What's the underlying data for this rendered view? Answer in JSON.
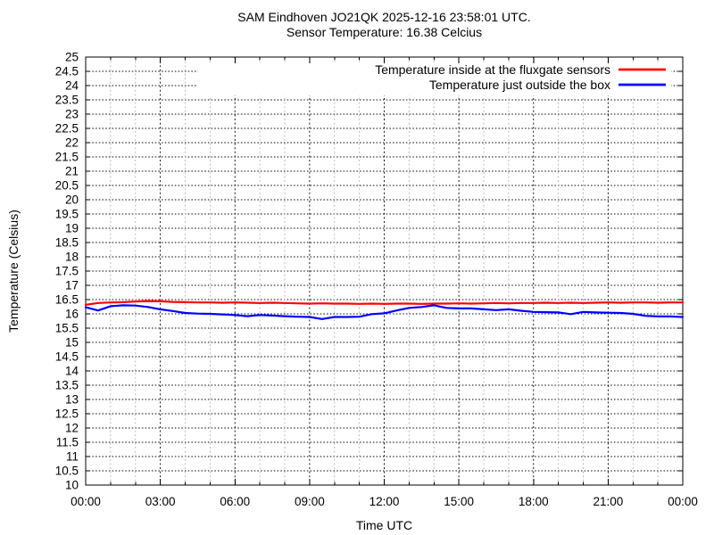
{
  "header": {
    "title": "SAM Eindhoven JO21QK 2025-12-16 23:58:01 UTC.",
    "subtitle": "Sensor Temperature: 16.38 Celcius"
  },
  "chart_data": {
    "type": "line",
    "title": "SAM Eindhoven JO21QK 2025-12-16 23:58:01 UTC.",
    "subtitle": "Sensor Temperature: 16.38 Celcius",
    "xlabel": "Time UTC",
    "ylabel": "Temperature (Celsius)",
    "xlim": [
      0,
      24
    ],
    "ylim": [
      10,
      25
    ],
    "yticks": {
      "min": 10,
      "max": 25,
      "step": 0.5
    },
    "xticks": {
      "hours": [
        0,
        3,
        6,
        9,
        12,
        15,
        18,
        21,
        24
      ],
      "labels": [
        "00:00",
        "03:00",
        "06:00",
        "09:00",
        "12:00",
        "15:00",
        "18:00",
        "21:00",
        "00:00"
      ],
      "minor_step_hours": 1
    },
    "grid": {
      "horizontal": "dotted-black",
      "vertical_major": "dashed-black",
      "vertical_minor": "dashed-gray"
    },
    "legend_position": "top-right-inside",
    "x_hours": [
      0,
      0.5,
      1,
      1.5,
      2,
      2.5,
      3,
      3.5,
      4,
      4.5,
      5,
      5.5,
      6,
      6.5,
      7,
      7.5,
      8,
      8.5,
      9,
      9.5,
      10,
      10.5,
      11,
      11.5,
      12,
      12.5,
      13,
      13.5,
      14,
      14.5,
      15,
      15.5,
      16,
      16.5,
      17,
      17.5,
      18,
      18.5,
      19,
      19.5,
      20,
      20.5,
      21,
      21.5,
      22,
      22.5,
      23,
      23.5,
      24
    ],
    "series": [
      {
        "name": "Temperature inside at the fluxgate sensors",
        "color": "#ff0000",
        "values": [
          16.32,
          16.38,
          16.4,
          16.41,
          16.43,
          16.45,
          16.44,
          16.42,
          16.41,
          16.4,
          16.4,
          16.39,
          16.4,
          16.39,
          16.38,
          16.39,
          16.38,
          16.37,
          16.36,
          16.37,
          16.36,
          16.36,
          16.35,
          16.36,
          16.35,
          16.36,
          16.36,
          16.35,
          16.36,
          16.36,
          16.37,
          16.36,
          16.37,
          16.38,
          16.37,
          16.38,
          16.38,
          16.39,
          16.38,
          16.39,
          16.38,
          16.39,
          16.4,
          16.39,
          16.4,
          16.4,
          16.39,
          16.4,
          16.4
        ]
      },
      {
        "name": "Temperature just outside the box",
        "color": "#0000ff",
        "values": [
          16.23,
          16.12,
          16.27,
          16.3,
          16.29,
          16.24,
          16.16,
          16.1,
          16.03,
          16.01,
          16.0,
          15.98,
          15.96,
          15.92,
          15.96,
          15.94,
          15.92,
          15.9,
          15.89,
          15.82,
          15.89,
          15.89,
          15.9,
          15.99,
          16.02,
          16.12,
          16.21,
          16.24,
          16.3,
          16.21,
          16.19,
          16.19,
          16.16,
          16.13,
          16.16,
          16.11,
          16.07,
          16.06,
          16.05,
          15.99,
          16.07,
          16.05,
          16.04,
          16.03,
          16.0,
          15.93,
          15.91,
          15.91,
          15.89
        ]
      }
    ],
    "colors": {
      "frame": "#000000",
      "grid_major": "#000000",
      "grid_minor": "#b3b3b3",
      "background": "#ffffff"
    }
  }
}
